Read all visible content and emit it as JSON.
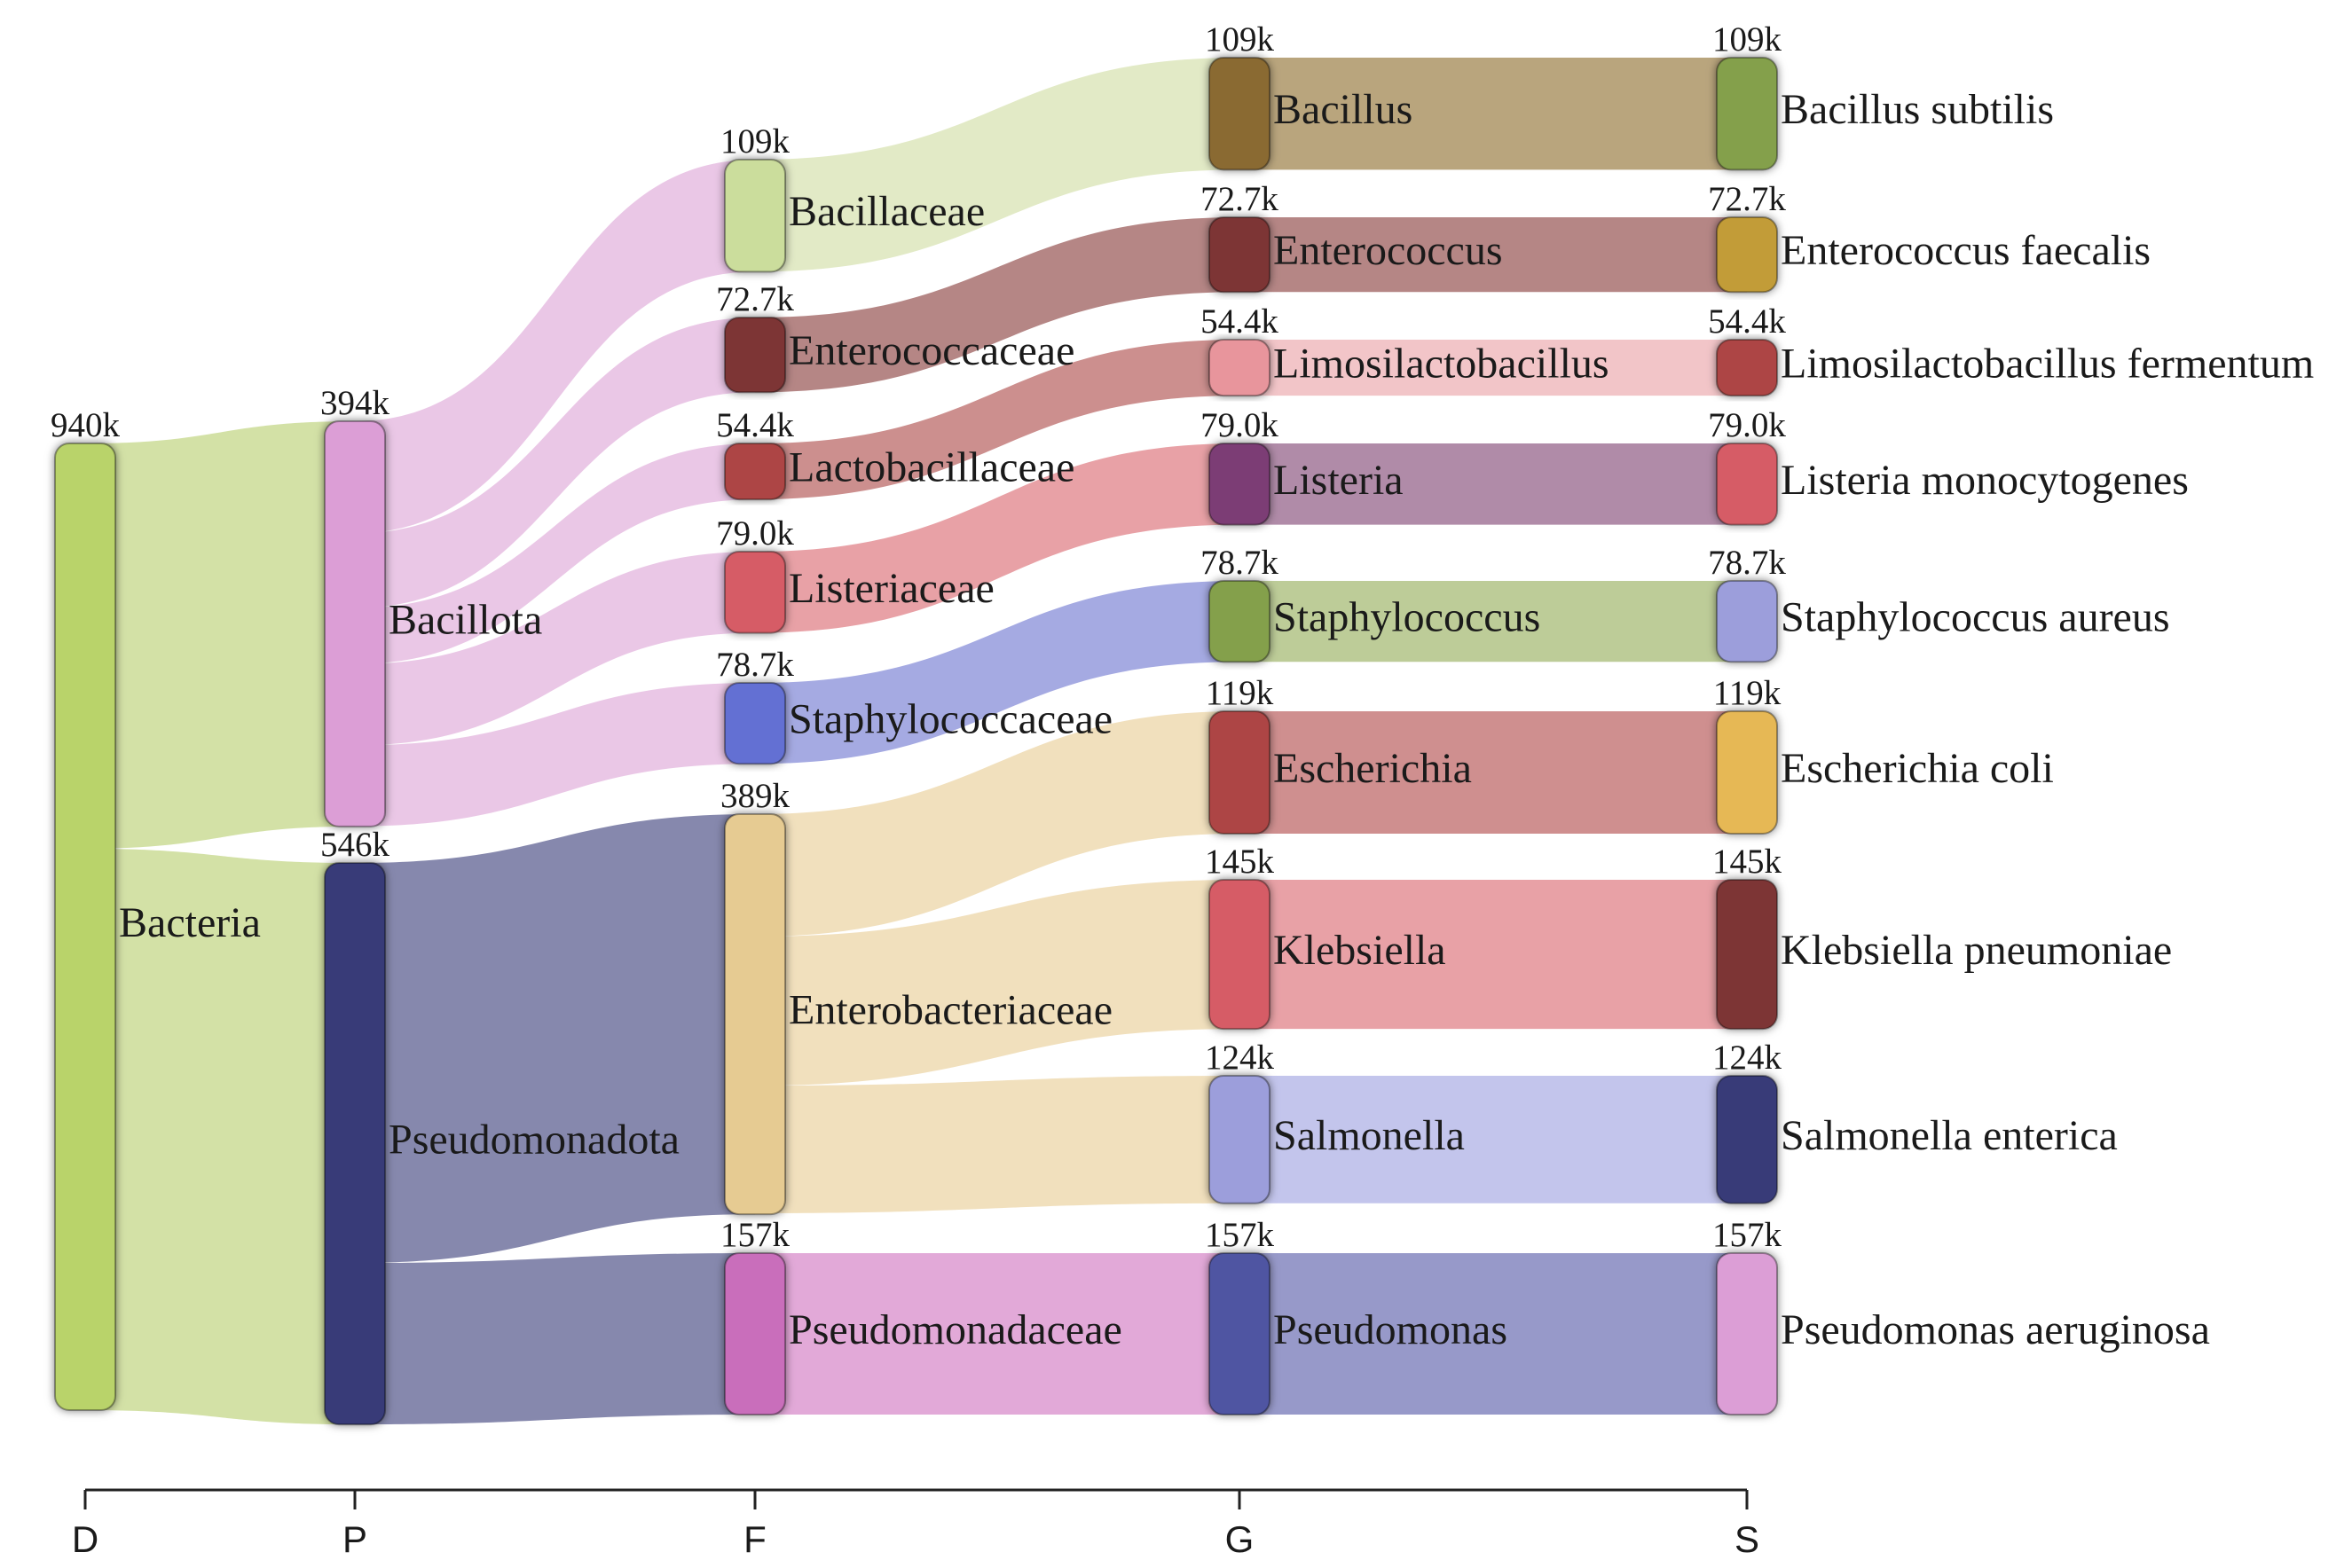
{
  "chart_data": {
    "type": "sankey",
    "title": "",
    "levels": [
      "D",
      "P",
      "F",
      "G",
      "S"
    ],
    "nodes": [
      {
        "id": "bacteria",
        "name": "Bacteria",
        "level": "D",
        "value_label": "940k",
        "color": "#b9d36a"
      },
      {
        "id": "bacillota",
        "name": "Bacillota",
        "level": "P",
        "value_label": "394k",
        "color": "#dc9ed6"
      },
      {
        "id": "pseudomonadota",
        "name": "Pseudomonadota",
        "level": "P",
        "value_label": "546k",
        "color": "#373a78"
      },
      {
        "id": "bacillaceae",
        "name": "Bacillaceae",
        "level": "F",
        "value_label": "109k",
        "color": "#cbdd9c"
      },
      {
        "id": "enterococcaceae",
        "name": "Enterococcaceae",
        "level": "F",
        "value_label": "72.7k",
        "color": "#7d3534"
      },
      {
        "id": "lactobacillaceae",
        "name": "Lactobacillaceae",
        "level": "F",
        "value_label": "54.4k",
        "color": "#ad4544"
      },
      {
        "id": "listeriaceae",
        "name": "Listeriaceae",
        "level": "F",
        "value_label": "79.0k",
        "color": "#d65c66"
      },
      {
        "id": "staphylococcaceae",
        "name": "Staphylococcaceae",
        "level": "F",
        "value_label": "78.7k",
        "color": "#6470d3"
      },
      {
        "id": "enterobacteriaceae",
        "name": "Enterobacteriaceae",
        "level": "F",
        "value_label": "389k",
        "color": "#e6cb92"
      },
      {
        "id": "pseudomonadaceae",
        "name": "Pseudomonadaceae",
        "level": "F",
        "value_label": "157k",
        "color": "#c96ebb"
      },
      {
        "id": "bacillus",
        "name": "Bacillus",
        "level": "G",
        "value_label": "109k",
        "color": "#8a6a33"
      },
      {
        "id": "enterococcus",
        "name": "Enterococcus",
        "level": "G",
        "value_label": "72.7k",
        "color": "#7d3534"
      },
      {
        "id": "limosilactobacillus",
        "name": "Limosilactobacillus",
        "level": "G",
        "value_label": "54.4k",
        "color": "#e8959c"
      },
      {
        "id": "listeria",
        "name": "Listeria",
        "level": "G",
        "value_label": "79.0k",
        "color": "#7b3e74"
      },
      {
        "id": "staphylococcus",
        "name": "Staphylococcus",
        "level": "G",
        "value_label": "78.7k",
        "color": "#84a04b"
      },
      {
        "id": "escherichia",
        "name": "Escherichia",
        "level": "G",
        "value_label": "119k",
        "color": "#ad4544"
      },
      {
        "id": "klebsiella",
        "name": "Klebsiella",
        "level": "G",
        "value_label": "145k",
        "color": "#d65c66"
      },
      {
        "id": "salmonella",
        "name": "Salmonella",
        "level": "G",
        "value_label": "124k",
        "color": "#9c9edb"
      },
      {
        "id": "pseudomonas",
        "name": "Pseudomonas",
        "level": "G",
        "value_label": "157k",
        "color": "#4f55a2"
      },
      {
        "id": "b_subtilis",
        "name": "Bacillus subtilis",
        "level": "S",
        "value_label": "109k",
        "color": "#84a04b"
      },
      {
        "id": "e_faecalis",
        "name": "Enterococcus faecalis",
        "level": "S",
        "value_label": "72.7k",
        "color": "#c29c37"
      },
      {
        "id": "l_fermentum",
        "name": "Limosilactobacillus fermentum",
        "level": "S",
        "value_label": "54.4k",
        "color": "#ad4544"
      },
      {
        "id": "l_monocytogenes",
        "name": "Listeria monocytogenes",
        "level": "S",
        "value_label": "79.0k",
        "color": "#d65c66"
      },
      {
        "id": "s_aureus",
        "name": "Staphylococcus aureus",
        "level": "S",
        "value_label": "78.7k",
        "color": "#9c9edb"
      },
      {
        "id": "e_coli",
        "name": "Escherichia coli",
        "level": "S",
        "value_label": "119k",
        "color": "#e6b855"
      },
      {
        "id": "k_pneumoniae",
        "name": "Klebsiella pneumoniae",
        "level": "S",
        "value_label": "145k",
        "color": "#7d3534"
      },
      {
        "id": "s_enterica",
        "name": "Salmonella enterica",
        "level": "S",
        "value_label": "124k",
        "color": "#373a78"
      },
      {
        "id": "p_aeruginosa",
        "name": "Pseudomonas aeruginosa",
        "level": "S",
        "value_label": "157k",
        "color": "#dc9ed6"
      }
    ],
    "links": [
      {
        "source": "bacteria",
        "target": "bacillota",
        "value": 394,
        "color": "#d3e1a6"
      },
      {
        "source": "bacteria",
        "target": "pseudomonadota",
        "value": 546,
        "color": "#d3e1a6"
      },
      {
        "source": "bacillota",
        "target": "bacillaceae",
        "value": 109,
        "color": "#eac7e6"
      },
      {
        "source": "bacillota",
        "target": "enterococcaceae",
        "value": 72.7,
        "color": "#eac7e6"
      },
      {
        "source": "bacillota",
        "target": "lactobacillaceae",
        "value": 54.4,
        "color": "#eac7e6"
      },
      {
        "source": "bacillota",
        "target": "listeriaceae",
        "value": 79.0,
        "color": "#eac7e6"
      },
      {
        "source": "bacillota",
        "target": "staphylococcaceae",
        "value": 78.7,
        "color": "#eac7e6"
      },
      {
        "source": "pseudomonadota",
        "target": "enterobacteriaceae",
        "value": 389,
        "color": "#8688ad"
      },
      {
        "source": "pseudomonadota",
        "target": "pseudomonadaceae",
        "value": 157,
        "color": "#8688ad"
      },
      {
        "source": "bacillaceae",
        "target": "bacillus",
        "value": 109,
        "color": "#e2eac6"
      },
      {
        "source": "enterococcaceae",
        "target": "enterococcus",
        "value": 72.7,
        "color": "#b58685"
      },
      {
        "source": "lactobacillaceae",
        "target": "limosilactobacillus",
        "value": 54.4,
        "color": "#cc8f8e"
      },
      {
        "source": "listeriaceae",
        "target": "listeria",
        "value": 79.0,
        "color": "#e8a1a6"
      },
      {
        "source": "staphylococcaceae",
        "target": "staphylococcus",
        "value": 78.7,
        "color": "#a5aae2"
      },
      {
        "source": "enterobacteriaceae",
        "target": "escherichia",
        "value": 119,
        "color": "#f1e0bd"
      },
      {
        "source": "enterobacteriaceae",
        "target": "klebsiella",
        "value": 145,
        "color": "#f1e0bd"
      },
      {
        "source": "enterobacteriaceae",
        "target": "salmonella",
        "value": 124,
        "color": "#f1e0bd"
      },
      {
        "source": "pseudomonadaceae",
        "target": "pseudomonas",
        "value": 157,
        "color": "#e2a9d8"
      },
      {
        "source": "bacillus",
        "target": "b_subtilis",
        "value": 109,
        "color": "#b9a57d"
      },
      {
        "source": "enterococcus",
        "target": "e_faecalis",
        "value": 72.7,
        "color": "#b58685"
      },
      {
        "source": "limosilactobacillus",
        "target": "l_fermentum",
        "value": 54.4,
        "color": "#f2c5c8"
      },
      {
        "source": "listeria",
        "target": "l_monocytogenes",
        "value": 79.0,
        "color": "#b08ba8"
      },
      {
        "source": "staphylococcus",
        "target": "s_aureus",
        "value": 78.7,
        "color": "#bdcc98"
      },
      {
        "source": "escherichia",
        "target": "e_coli",
        "value": 119,
        "color": "#cf8f8f"
      },
      {
        "source": "klebsiella",
        "target": "k_pneumoniae",
        "value": 145,
        "color": "#e8a1a6"
      },
      {
        "source": "salmonella",
        "target": "s_enterica",
        "value": 124,
        "color": "#c3c5ec"
      },
      {
        "source": "pseudomonas",
        "target": "p_aeruginosa",
        "value": 157,
        "color": "#9799c9"
      }
    ]
  }
}
